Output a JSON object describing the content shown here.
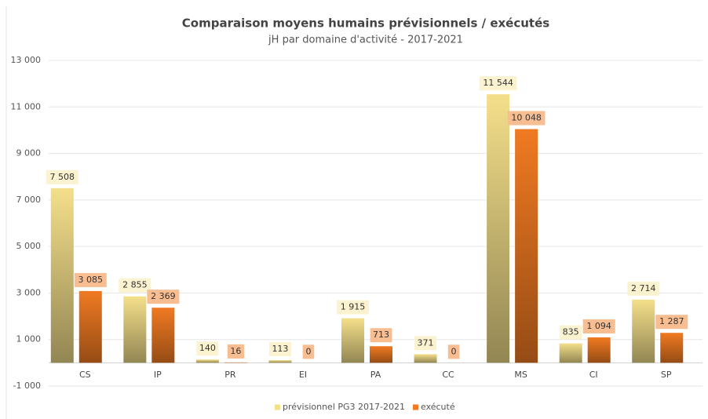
{
  "chart_data": {
    "type": "bar",
    "title": "Comparaison moyens humains prévisionnels / exécutés",
    "subtitle": "jH par domaine d'activité -  2017-2021",
    "categories": [
      "CS",
      "IP",
      "PR",
      "EI",
      "PA",
      "CC",
      "MS",
      "CI",
      "SP"
    ],
    "series": [
      {
        "name": "prévisionnel PG3 2017-2021",
        "color": "#f4df8a",
        "values": [
          7508,
          2855,
          140,
          113,
          1915,
          371,
          11544,
          835,
          2714
        ],
        "value_labels": [
          "7 508",
          "2 855",
          "140",
          "113",
          "1 915",
          "371",
          "11 544",
          "835",
          "2 714"
        ]
      },
      {
        "name": "exécuté",
        "color": "#f07a22",
        "values": [
          3085,
          2369,
          16,
          0,
          713,
          0,
          10048,
          1094,
          1287
        ],
        "value_labels": [
          "3 085",
          "2 369",
          "16",
          "0",
          "713",
          "0",
          "10 048",
          "1 094",
          "1 287"
        ]
      }
    ],
    "ylim": [
      -1000,
      13000
    ],
    "yticks": [
      {
        "value": -1000,
        "label": "-1 000"
      },
      {
        "value": 1000,
        "label": "1 000"
      },
      {
        "value": 3000,
        "label": "3 000"
      },
      {
        "value": 5000,
        "label": "5 000"
      },
      {
        "value": 7000,
        "label": "7 000"
      },
      {
        "value": 9000,
        "label": "9 000"
      },
      {
        "value": 11000,
        "label": "11 000"
      },
      {
        "value": 13000,
        "label": "13 000"
      }
    ],
    "grid": true,
    "legend": "bottom"
  }
}
